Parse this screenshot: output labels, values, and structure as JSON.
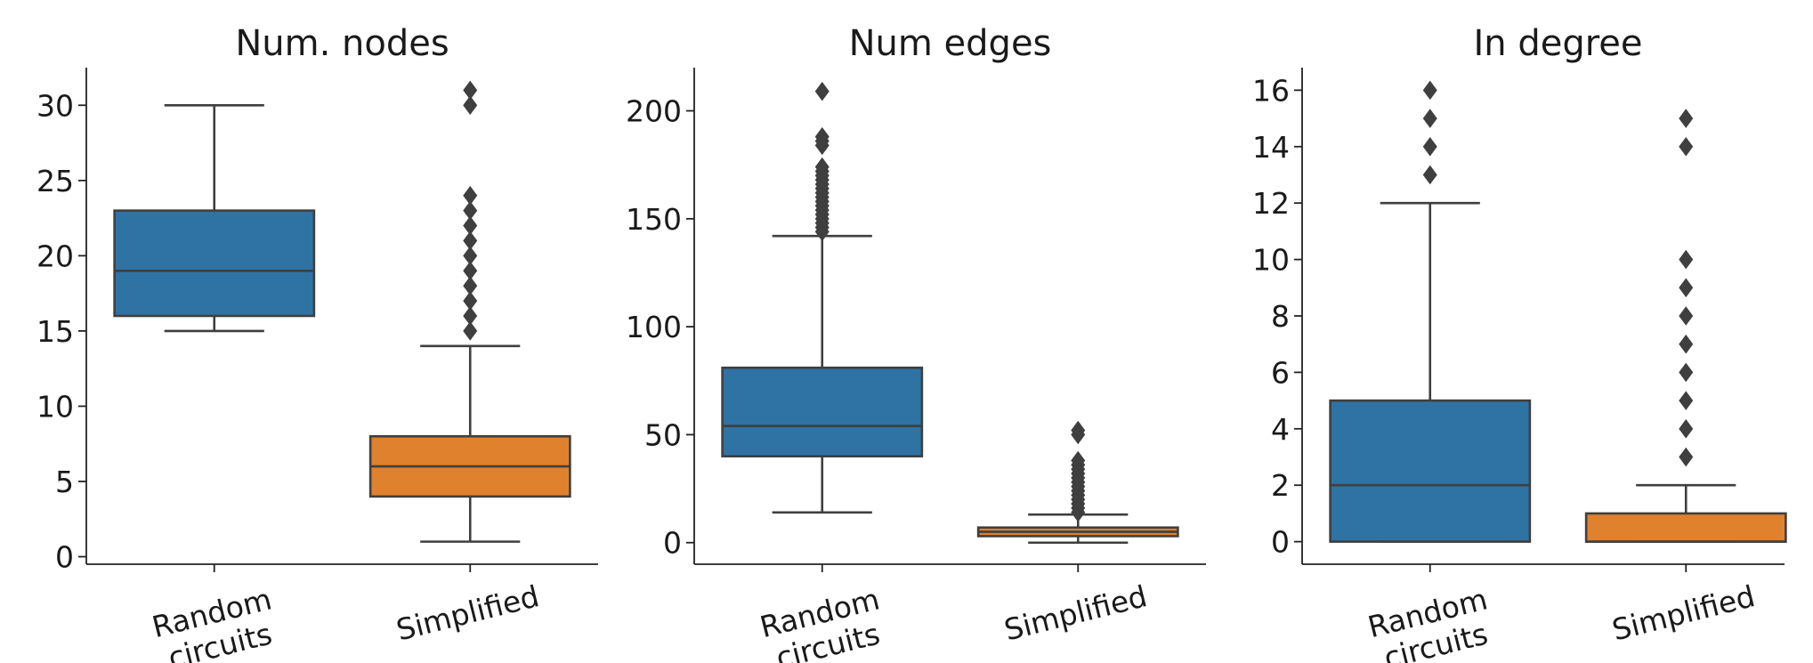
{
  "chart_data": [
    {
      "type": "box",
      "title": "Num. nodes",
      "categories": [
        "Random\ncircuits",
        "Simplified"
      ],
      "ylim": [
        -0.5,
        32.5
      ],
      "yticks": [
        0,
        5,
        10,
        15,
        20,
        25,
        30
      ],
      "boxes": [
        {
          "category": "Random\ncircuits",
          "color": "#2f73a5",
          "whislo": 15,
          "q1": 16,
          "median": 19,
          "q3": 23,
          "whishi": 30,
          "fliers": []
        },
        {
          "category": "Simplified",
          "color": "#e0812d",
          "whislo": 1,
          "q1": 4,
          "median": 6,
          "q3": 8,
          "whishi": 14,
          "fliers": [
            15,
            16,
            17,
            18,
            19,
            20,
            21,
            22,
            23,
            24,
            30,
            31
          ]
        }
      ]
    },
    {
      "type": "box",
      "title": "Num edges",
      "categories": [
        "Random\ncircuits",
        "Simplified"
      ],
      "ylim": [
        -10,
        220
      ],
      "yticks": [
        0,
        50,
        100,
        150,
        200
      ],
      "boxes": [
        {
          "category": "Random\ncircuits",
          "color": "#2f73a5",
          "whislo": 14,
          "q1": 40,
          "median": 54,
          "q3": 81,
          "whishi": 142,
          "fliers": [
            144,
            146,
            148,
            150,
            152,
            154,
            156,
            158,
            160,
            162,
            164,
            166,
            168,
            170,
            172,
            174,
            184,
            186,
            188,
            209
          ]
        },
        {
          "category": "Simplified",
          "color": "#e0812d",
          "whislo": 0,
          "q1": 3,
          "median": 5,
          "q3": 7,
          "whishi": 13,
          "fliers": [
            14,
            16,
            18,
            20,
            22,
            24,
            26,
            28,
            30,
            32,
            34,
            36,
            38,
            50,
            52
          ]
        }
      ]
    },
    {
      "type": "box",
      "title": "In degree",
      "categories": [
        "Random\ncircuits",
        "Simplified"
      ],
      "ylim": [
        -0.8,
        16.8
      ],
      "yticks": [
        0,
        2,
        4,
        6,
        8,
        10,
        12,
        14,
        16
      ],
      "boxes": [
        {
          "category": "Random\ncircuits",
          "color": "#2f73a5",
          "whislo": 0,
          "q1": 0,
          "median": 2,
          "q3": 5,
          "whishi": 12,
          "fliers": [
            13,
            14,
            15,
            16
          ]
        },
        {
          "category": "Simplified",
          "color": "#e0812d",
          "whislo": 0,
          "q1": 0,
          "median": 0,
          "q3": 1,
          "whishi": 2,
          "fliers": [
            3,
            4,
            5,
            6,
            7,
            8,
            9,
            10,
            14,
            15
          ]
        }
      ]
    }
  ]
}
